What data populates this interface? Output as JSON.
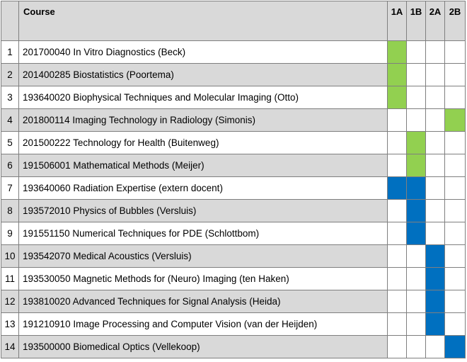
{
  "header": {
    "number": "",
    "course": "Course",
    "terms": [
      "1A",
      "1B",
      "2A",
      "2B"
    ]
  },
  "colors": {
    "green": "#92d050",
    "blue": "#0070c0",
    "shade": "#d9d9d9"
  },
  "rows": [
    {
      "number": "1",
      "course": "201700040 In Vitro Diagnostics (Beck)",
      "shaded": false,
      "terms": [
        "green",
        "",
        "",
        ""
      ]
    },
    {
      "number": "2",
      "course": "201400285 Biostatistics (Poortema)",
      "shaded": true,
      "terms": [
        "green",
        "",
        "",
        ""
      ]
    },
    {
      "number": "3",
      "course": "193640020 Biophysical Techniques and Molecular Imaging (Otto)",
      "shaded": false,
      "terms": [
        "green",
        "",
        "",
        ""
      ]
    },
    {
      "number": "4",
      "course": "201800114 Imaging Technology in Radiology (Simonis)",
      "shaded": true,
      "terms": [
        "",
        "",
        "",
        "green"
      ]
    },
    {
      "number": "5",
      "course": "201500222 Technology for Health (Buitenweg)",
      "shaded": false,
      "terms": [
        "",
        "green",
        "",
        ""
      ]
    },
    {
      "number": "6",
      "course": "191506001 Mathematical Methods (Meijer)",
      "shaded": true,
      "terms": [
        "",
        "green",
        "",
        ""
      ]
    },
    {
      "number": "7",
      "course": "193640060 Radiation Expertise (extern docent)",
      "shaded": false,
      "terms": [
        "blue",
        "blue",
        "",
        ""
      ]
    },
    {
      "number": "8",
      "course": "193572010 Physics of Bubbles (Versluis)",
      "shaded": true,
      "terms": [
        "",
        "blue",
        "",
        ""
      ]
    },
    {
      "number": "9",
      "course": "191551150 Numerical Techniques for PDE (Schlottbom)",
      "shaded": false,
      "terms": [
        "",
        "blue",
        "",
        ""
      ]
    },
    {
      "number": "10",
      "course": "193542070 Medical Acoustics (Versluis)",
      "shaded": true,
      "terms": [
        "",
        "",
        "blue",
        ""
      ]
    },
    {
      "number": "11",
      "course": "193530050 Magnetic Methods for (Neuro) Imaging (ten Haken)",
      "shaded": false,
      "terms": [
        "",
        "",
        "blue",
        ""
      ]
    },
    {
      "number": "12",
      "course": "193810020 Advanced Techniques for Signal Analysis (Heida)",
      "shaded": true,
      "terms": [
        "",
        "",
        "blue",
        ""
      ]
    },
    {
      "number": "13",
      "course": "191210910 Image Processing and Computer Vision (van der Heijden)",
      "shaded": false,
      "terms": [
        "",
        "",
        "blue",
        ""
      ]
    },
    {
      "number": "14",
      "course": "193500000 Biomedical Optics (Vellekoop)",
      "shaded": true,
      "terms": [
        "",
        "",
        "",
        "blue"
      ]
    }
  ]
}
